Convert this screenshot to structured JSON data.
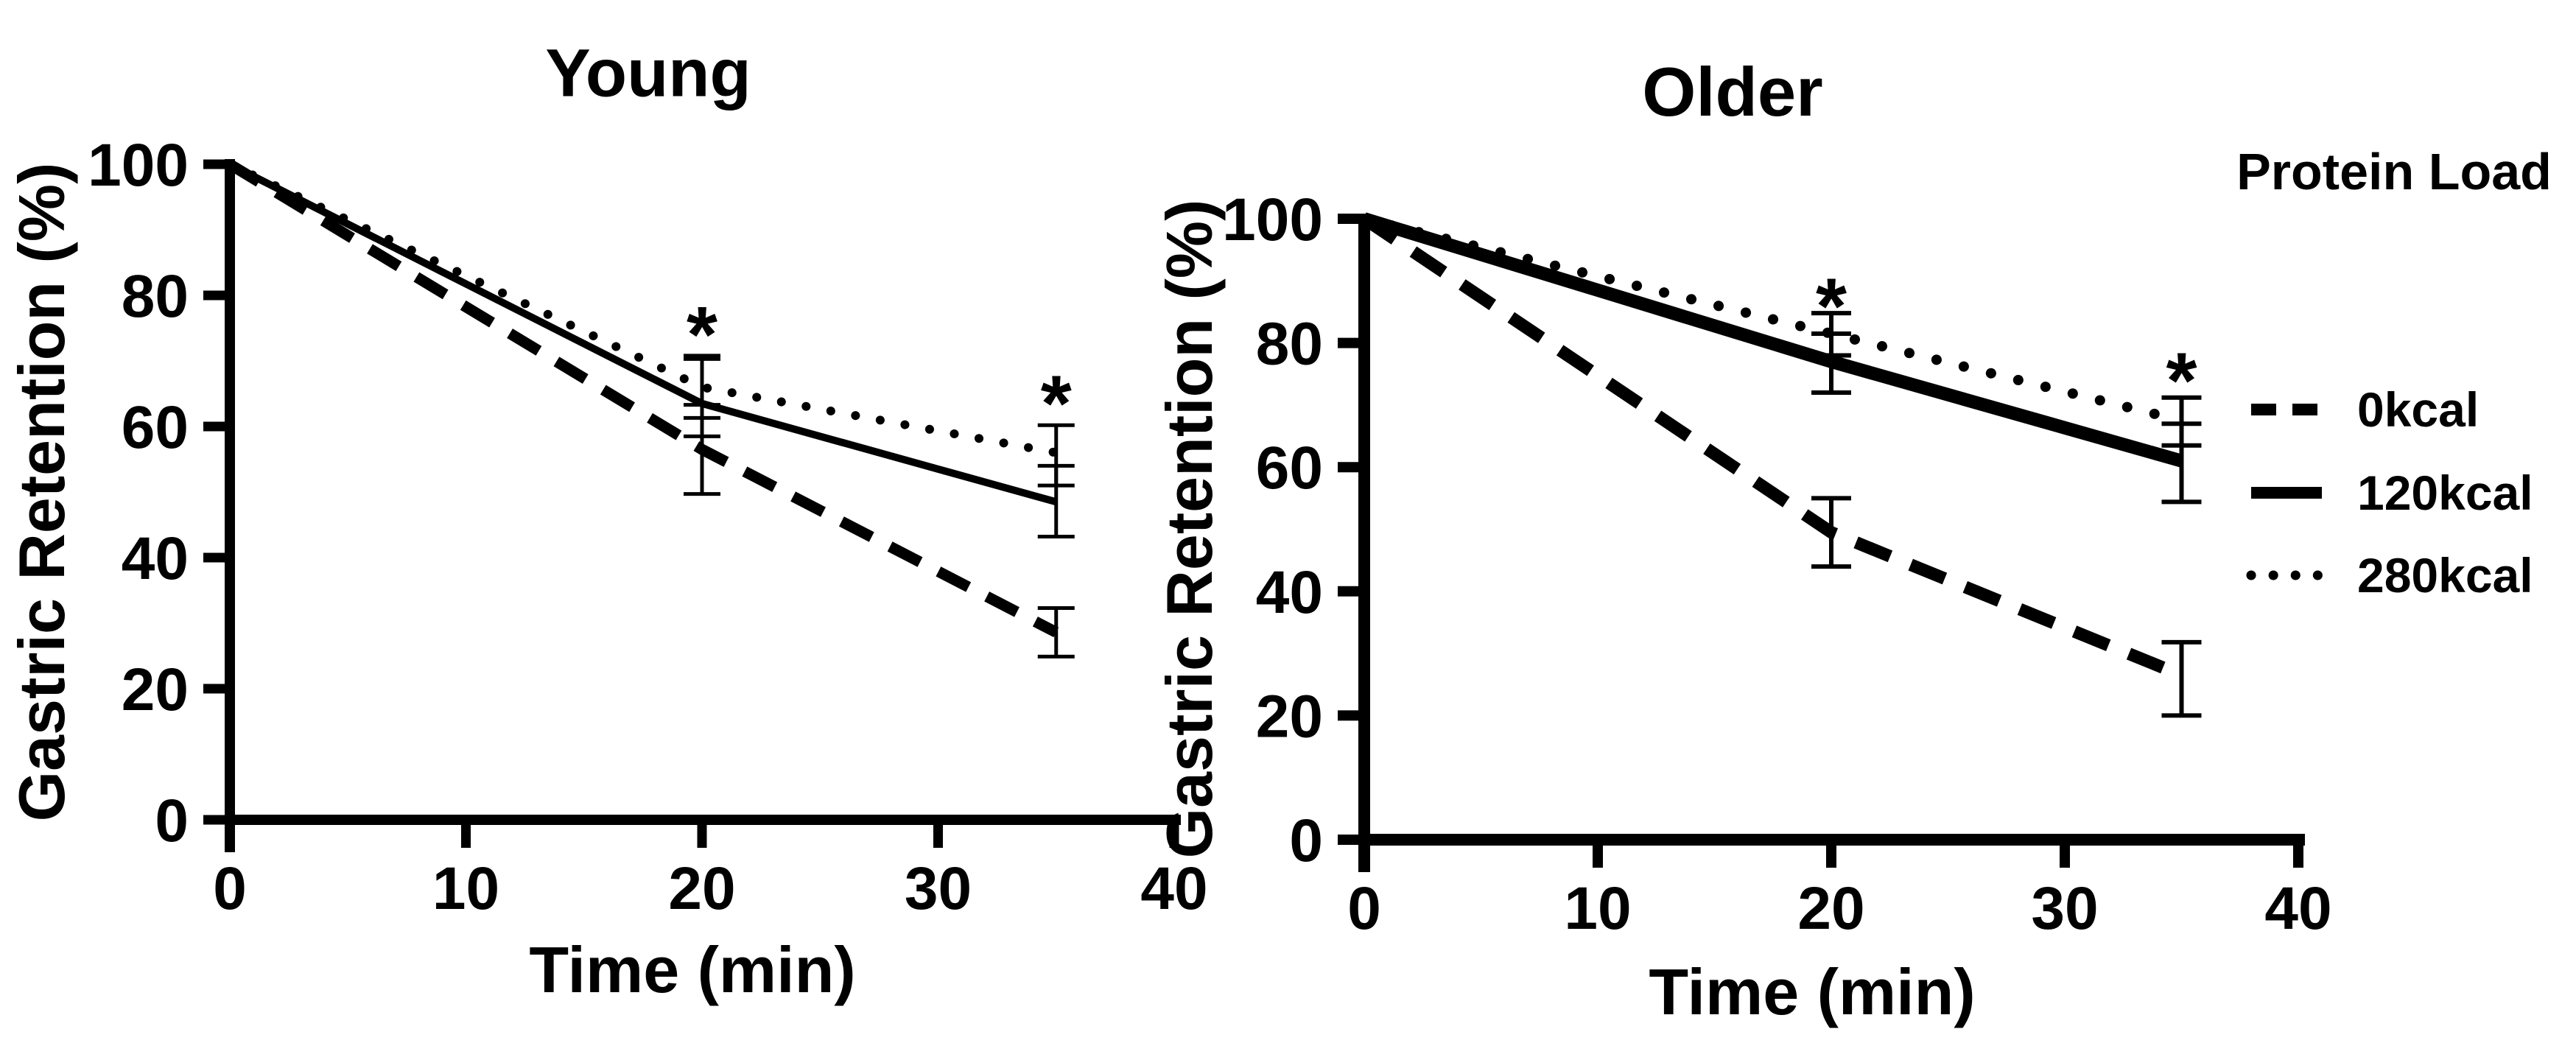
{
  "figure": {
    "background": "#ffffff",
    "ink": "#000000"
  },
  "legend": {
    "title": "Protein Load",
    "items": [
      {
        "label": "0kcal",
        "style": "dashed"
      },
      {
        "label": "120kcal",
        "style": "solid"
      },
      {
        "label": "280kcal",
        "style": "dotted"
      }
    ]
  },
  "chart_data": [
    {
      "type": "line",
      "title": "Young",
      "xlabel": "Time (min)",
      "ylabel": "Gastric Retention (%)",
      "xlim": [
        0,
        40
      ],
      "ylim": [
        0,
        100
      ],
      "x_ticks": [
        0,
        10,
        20,
        30,
        40
      ],
      "y_ticks": [
        0,
        20,
        40,
        60,
        80,
        100
      ],
      "grid": false,
      "legend_position": "none",
      "x": [
        0,
        20,
        35
      ],
      "series": [
        {
          "name": "0kcal",
          "style": "dashed",
          "values": [
            100,
            56.5,
            28.6
          ],
          "err_lo": [
            null,
            49.7,
            24.9
          ],
          "err_hi": [
            null,
            63.3,
            32.3
          ]
        },
        {
          "name": "120kcal",
          "style": "solid",
          "values": [
            100,
            63.5,
            48.5
          ],
          "err_lo": [
            null,
            58.5,
            43.2
          ],
          "err_hi": [
            null,
            70.3,
            54.0
          ]
        },
        {
          "name": "280kcal",
          "style": "dotted",
          "values": [
            100,
            66.0,
            56.0
          ],
          "err_lo": [
            null,
            61.3,
            51.0
          ],
          "err_hi": [
            null,
            70.8,
            60.2
          ]
        }
      ],
      "annotations": [
        {
          "text": "*",
          "x": 20,
          "y": 75.5
        },
        {
          "text": "*",
          "x": 35,
          "y": 65.0
        }
      ]
    },
    {
      "type": "line",
      "title": "Older",
      "xlabel": "Time (min)",
      "ylabel": "Gastric Retention (%)",
      "xlim": [
        0,
        40
      ],
      "ylim": [
        0,
        100
      ],
      "x_ticks": [
        0,
        10,
        20,
        30,
        40
      ],
      "y_ticks": [
        0,
        20,
        40,
        60,
        80,
        100
      ],
      "grid": false,
      "legend_position": "right",
      "x": [
        0,
        20,
        35
      ],
      "series": [
        {
          "name": "0kcal",
          "style": "dashed",
          "values": [
            100,
            49.5,
            26.5
          ],
          "err_lo": [
            null,
            44.0,
            20.0
          ],
          "err_hi": [
            null,
            55.0,
            31.8
          ]
        },
        {
          "name": "120kcal",
          "style": "solid",
          "values": [
            100,
            77.0,
            61.0
          ],
          "err_lo": [
            null,
            72.0,
            54.4
          ],
          "err_hi": [
            null,
            81.5,
            67.0
          ]
        },
        {
          "name": "280kcal",
          "style": "dotted",
          "values": [
            100,
            81.5,
            67.5
          ],
          "err_lo": [
            null,
            78.0,
            63.5
          ],
          "err_hi": [
            null,
            84.8,
            71.2
          ]
        }
      ],
      "annotations": [
        {
          "text": "*",
          "x": 20,
          "y": 87.5
        },
        {
          "text": "*",
          "x": 35,
          "y": 75.5
        }
      ]
    }
  ]
}
